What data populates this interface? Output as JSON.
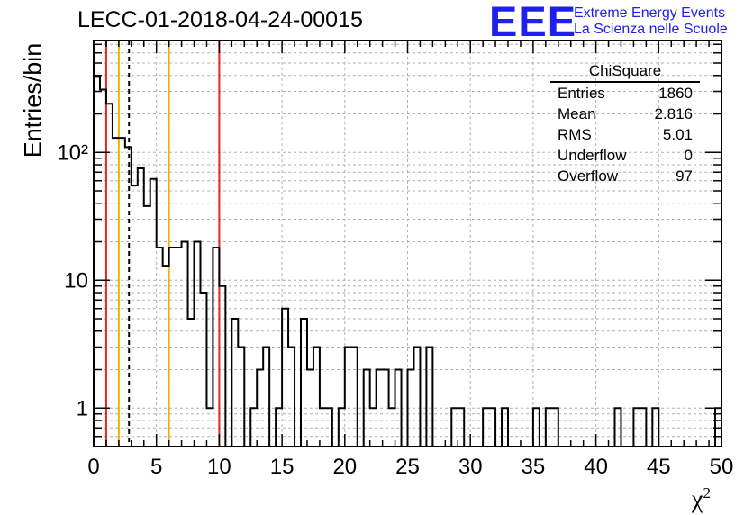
{
  "title": "LECC-01-2018-04-24-00015",
  "logo": {
    "mark": "EEE",
    "line1": "Extreme Energy Events",
    "line2": "La Scienza nelle Scuole",
    "color": "#2020ee"
  },
  "stats": {
    "title": "ChiSquare",
    "rows": [
      {
        "label": "Entries",
        "value": "1860"
      },
      {
        "label": "Mean",
        "value": "2.816"
      },
      {
        "label": "RMS",
        "value": "5.01"
      },
      {
        "label": "Underflow",
        "value": "0"
      },
      {
        "label": "Overflow",
        "value": "97"
      }
    ]
  },
  "chart_data": {
    "type": "histogram",
    "title": "LECC-01-2018-04-24-00015",
    "xlabel": "χ²",
    "ylabel": "Entries/bin",
    "x_range": [
      0,
      50
    ],
    "y_range": [
      0.5,
      750
    ],
    "y_scale": "log",
    "bin_width": 0.5,
    "grid": true,
    "x_ticks": [
      0,
      5,
      10,
      15,
      20,
      25,
      30,
      35,
      40,
      45,
      50
    ],
    "y_ticks": [
      {
        "value": 1,
        "label": "1"
      },
      {
        "value": 10,
        "label": "10"
      },
      {
        "value": 100,
        "label": "10²"
      }
    ],
    "bin_contents": [
      390,
      310,
      240,
      130,
      130,
      110,
      55,
      75,
      38,
      62,
      18,
      13,
      18,
      18,
      20,
      5,
      20,
      8,
      1,
      18,
      9,
      0,
      5,
      3,
      0,
      1,
      2,
      3,
      0,
      1,
      6,
      3,
      0,
      5,
      2,
      3,
      1,
      1,
      0,
      1,
      3,
      3,
      0,
      2,
      1,
      2,
      2,
      1,
      2,
      0,
      2,
      3,
      0,
      3,
      0,
      0,
      0,
      1,
      1,
      0,
      0,
      0,
      1,
      1,
      0,
      1,
      0,
      0,
      0,
      0,
      1,
      0,
      1,
      1,
      0,
      0,
      0,
      0,
      0,
      0,
      0,
      0,
      0,
      1,
      0,
      0,
      1,
      1,
      0,
      1,
      0,
      0,
      0,
      0,
      0,
      0,
      0,
      0,
      0,
      1
    ],
    "vertical_lines": [
      {
        "x": 1,
        "color": "#ee2222",
        "style": "solid"
      },
      {
        "x": 2,
        "color": "#f0b400",
        "style": "solid"
      },
      {
        "x": 2.816,
        "color": "#000000",
        "style": "dashed"
      },
      {
        "x": 6,
        "color": "#f0b400",
        "style": "solid"
      },
      {
        "x": 10,
        "color": "#ee2222",
        "style": "solid"
      }
    ]
  }
}
